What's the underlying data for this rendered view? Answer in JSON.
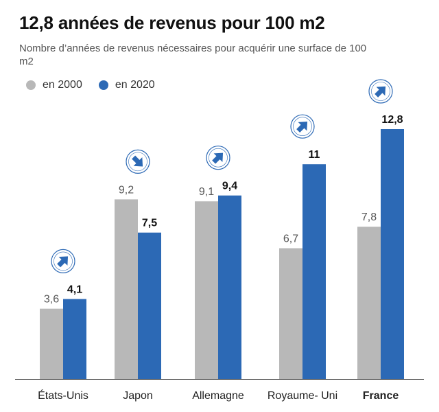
{
  "title": "12,8 années de revenus pour 100 m2",
  "subtitle": "Nombre d’années de revenus nécessaires pour acquérir une surface de 100 m2",
  "legend": [
    {
      "label": "en 2000",
      "color": "#b8b8b8"
    },
    {
      "label": "en 2020",
      "color": "#2c69b5"
    }
  ],
  "chart_data": {
    "type": "bar",
    "categories": [
      "États-Unis",
      "Japon",
      "Allemagne",
      "Royaume- Uni",
      "France"
    ],
    "series": [
      {
        "name": "en 2000",
        "values": [
          3.6,
          9.2,
          9.1,
          6.7,
          7.8
        ],
        "labels": [
          "3,6",
          "9,2",
          "9,1",
          "6,7",
          "7,8"
        ],
        "color": "#b8b8b8"
      },
      {
        "name": "en 2020",
        "values": [
          4.1,
          7.5,
          9.4,
          11,
          12.8
        ],
        "labels": [
          "4,1",
          "7,5",
          "9,4",
          "11",
          "12,8"
        ],
        "color": "#2c69b5"
      }
    ],
    "trend_icons": [
      "arrow-up-right-icon",
      "arrow-down-right-icon",
      "arrow-up-right-icon",
      "arrow-up-right-icon",
      "arrow-up-right-icon"
    ],
    "highlighted_category": "France",
    "ylim": [
      0,
      12.8
    ],
    "grid": false,
    "legend_position": "top-left"
  }
}
